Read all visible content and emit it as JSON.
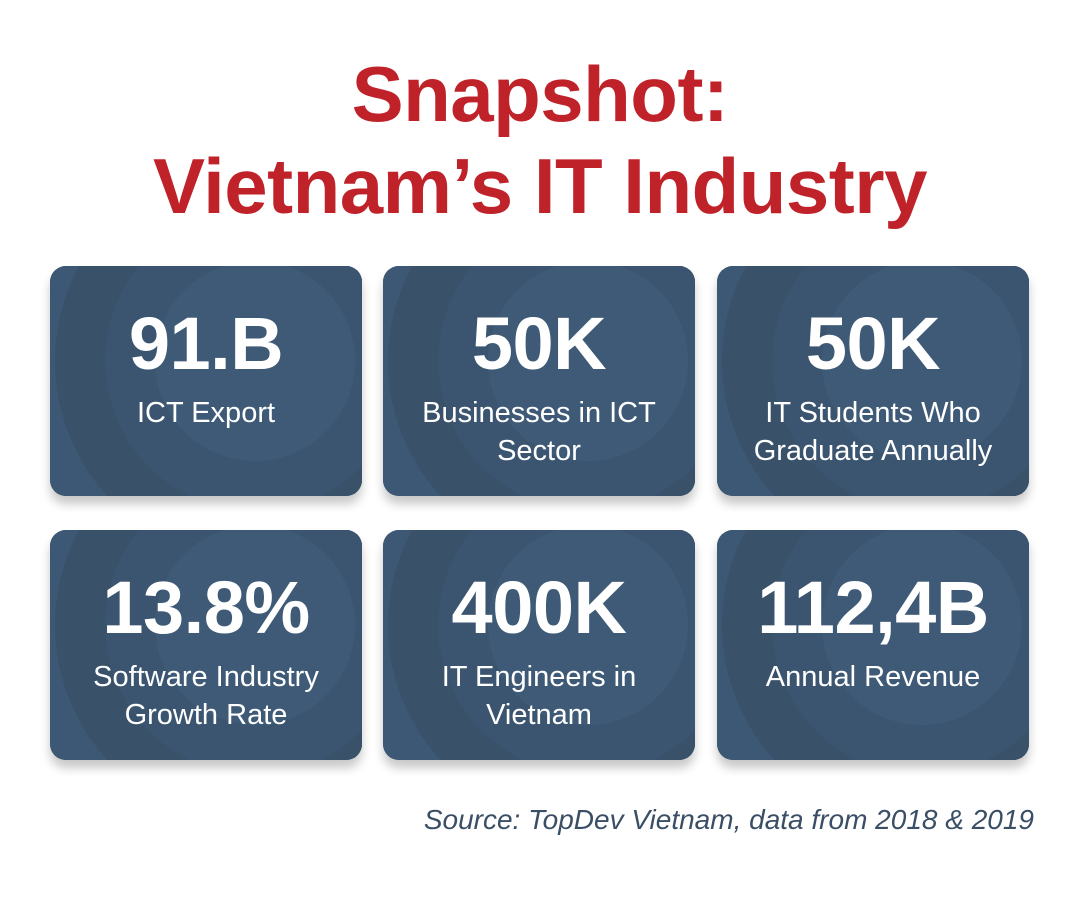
{
  "title": {
    "line1": "Snapshot:",
    "line2": "Vietnam’s IT Industry"
  },
  "colors": {
    "title": "#c0222a",
    "card": "#3f5a75",
    "card_text": "#ffffff",
    "source": "#3a4f66"
  },
  "cards": [
    {
      "value": "91.B",
      "label": "ICT Export"
    },
    {
      "value": "50K",
      "label": "Businesses in ICT Sector"
    },
    {
      "value": "50K",
      "label": "IT Students Who Graduate Annually"
    },
    {
      "value": "13.8%",
      "label": "Software Industry Growth Rate"
    },
    {
      "value": "400K",
      "label": "IT Engineers in Vietnam"
    },
    {
      "value": "112,4B",
      "label": "Annual Revenue"
    }
  ],
  "source": "Source: TopDev Vietnam, data from 2018 & 2019"
}
